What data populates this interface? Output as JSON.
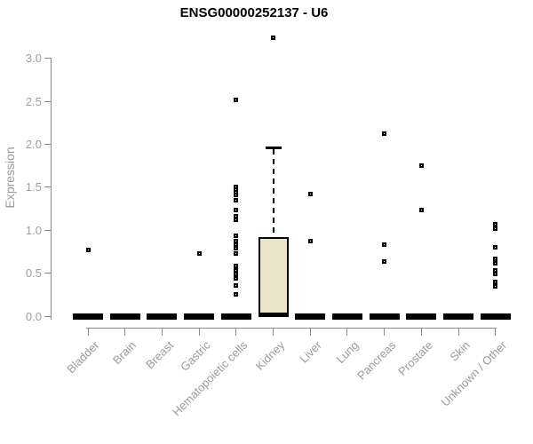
{
  "chart_data": {
    "type": "boxplot",
    "title": "ENSG00000252137 - U6",
    "ylabel": "Expression",
    "xlabel": "",
    "ylim": [
      0.0,
      3.0
    ],
    "yticks": [
      "0.0",
      "0.5",
      "1.0",
      "1.5",
      "2.0",
      "2.5",
      "3.0"
    ],
    "ytick_values": [
      0.0,
      0.5,
      1.0,
      1.5,
      2.0,
      2.5,
      3.0
    ],
    "grid": "off",
    "legend": "none",
    "box_fill_color": "#ece4c9",
    "box_line_color": "#000000",
    "axis_color": "#8b8b8b",
    "label_color": "#9a9a9a",
    "categories": [
      "Bladder",
      "Brain",
      "Breast",
      "Gastric",
      "Hematopoietic cells",
      "Kidney",
      "Liver",
      "Lung",
      "Pancreas",
      "Prostate",
      "Skin",
      "Unknown / Other"
    ],
    "boxes": [
      {
        "category": "Bladder",
        "whisker_low": 0,
        "q1": 0,
        "median": 0,
        "q3": 0,
        "whisker_high": 0,
        "outliers": [
          0.77
        ]
      },
      {
        "category": "Brain",
        "whisker_low": 0,
        "q1": 0,
        "median": 0,
        "q3": 0,
        "whisker_high": 0,
        "outliers": []
      },
      {
        "category": "Breast",
        "whisker_low": 0,
        "q1": 0,
        "median": 0,
        "q3": 0,
        "whisker_high": 0,
        "outliers": []
      },
      {
        "category": "Gastric",
        "whisker_low": 0,
        "q1": 0,
        "median": 0,
        "q3": 0,
        "whisker_high": 0,
        "outliers": [
          0.73
        ]
      },
      {
        "category": "Hematopoietic cells",
        "whisker_low": 0,
        "q1": 0,
        "median": 0,
        "q3": 0,
        "whisker_high": 0,
        "outliers": [
          2.52,
          1.5,
          1.47,
          1.44,
          1.41,
          1.35,
          1.23,
          1.16,
          1.12,
          0.94,
          0.87,
          0.83,
          0.79,
          0.73,
          0.58,
          0.53,
          0.49,
          0.44,
          0.36,
          0.25
        ]
      },
      {
        "category": "Kidney",
        "whisker_low": 0,
        "q1": 0,
        "median": 0,
        "q3": 0.92,
        "whisker_high": 1.96,
        "outliers": [
          3.24
        ]
      },
      {
        "category": "Liver",
        "whisker_low": 0,
        "q1": 0,
        "median": 0,
        "q3": 0,
        "whisker_high": 0,
        "outliers": [
          1.42,
          0.87
        ]
      },
      {
        "category": "Lung",
        "whisker_low": 0,
        "q1": 0,
        "median": 0,
        "q3": 0,
        "whisker_high": 0,
        "outliers": []
      },
      {
        "category": "Pancreas",
        "whisker_low": 0,
        "q1": 0,
        "median": 0,
        "q3": 0,
        "whisker_high": 0,
        "outliers": [
          2.12,
          0.83,
          0.64
        ]
      },
      {
        "category": "Prostate",
        "whisker_low": 0,
        "q1": 0,
        "median": 0,
        "q3": 0,
        "whisker_high": 0,
        "outliers": [
          1.75,
          1.23
        ]
      },
      {
        "category": "Skin",
        "whisker_low": 0,
        "q1": 0,
        "median": 0,
        "q3": 0,
        "whisker_high": 0,
        "outliers": []
      },
      {
        "category": "Unknown / Other",
        "whisker_low": 0,
        "q1": 0,
        "median": 0,
        "q3": 0,
        "whisker_high": 0,
        "outliers": [
          1.07,
          1.02,
          0.8,
          0.67,
          0.62,
          0.53,
          0.49,
          0.4,
          0.35
        ]
      }
    ]
  }
}
